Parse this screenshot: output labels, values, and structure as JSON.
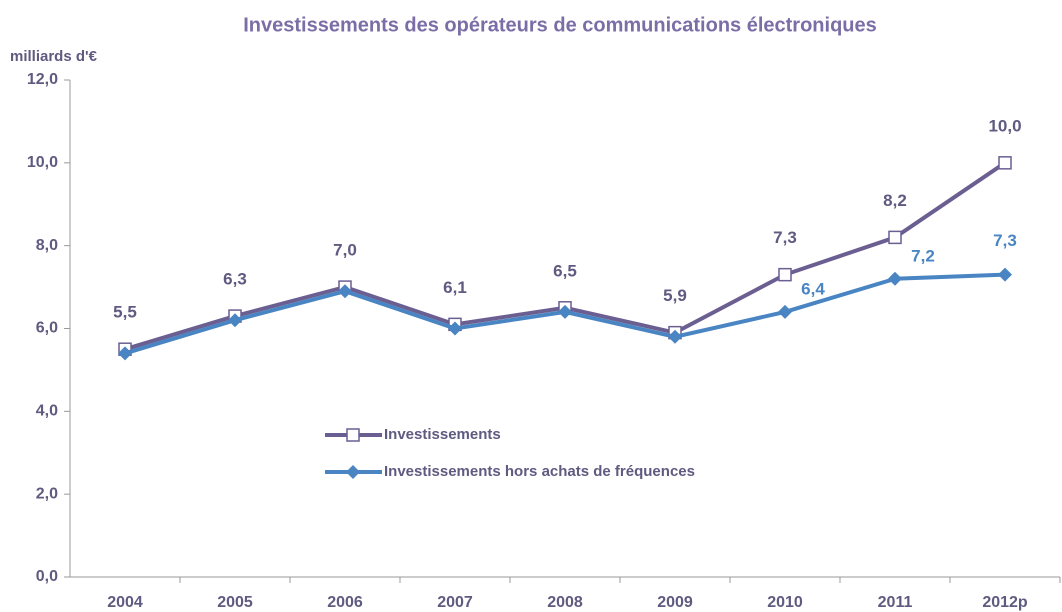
{
  "chart_data": {
    "type": "line",
    "title": "Investissements des opérateurs de communications électroniques",
    "y_label": "milliards d'€",
    "categories": [
      "2004",
      "2005",
      "2006",
      "2007",
      "2008",
      "2009",
      "2010",
      "2011",
      "2012p"
    ],
    "series": [
      {
        "name": "Investissements",
        "color": "#6b5f92",
        "marker": "square",
        "values": [
          5.5,
          6.3,
          7.0,
          6.1,
          6.5,
          5.9,
          7.3,
          8.2,
          10.0
        ],
        "value_labels": [
          "5,5",
          "6,3",
          "7,0",
          "6,1",
          "6,5",
          "5,9",
          "7,3",
          "8,2",
          "10,0"
        ]
      },
      {
        "name": "Investissements hors achats de fréquences",
        "color": "#4a85c3",
        "marker": "diamond",
        "values": [
          5.4,
          6.2,
          6.9,
          6.0,
          6.4,
          5.8,
          6.4,
          7.2,
          7.3
        ],
        "value_labels": [
          null,
          null,
          null,
          null,
          null,
          null,
          "6,4",
          "7,2",
          "7,3"
        ]
      }
    ],
    "ylim": [
      0,
      12
    ],
    "yticks": [
      {
        "value": 0,
        "label": "0,0"
      },
      {
        "value": 2,
        "label": "2,0"
      },
      {
        "value": 4,
        "label": "4,0"
      },
      {
        "value": 6,
        "label": "6,0"
      },
      {
        "value": 8,
        "label": "8,0"
      },
      {
        "value": 10,
        "label": "10,0"
      },
      {
        "value": 12,
        "label": "12,0"
      }
    ],
    "grid": false
  }
}
